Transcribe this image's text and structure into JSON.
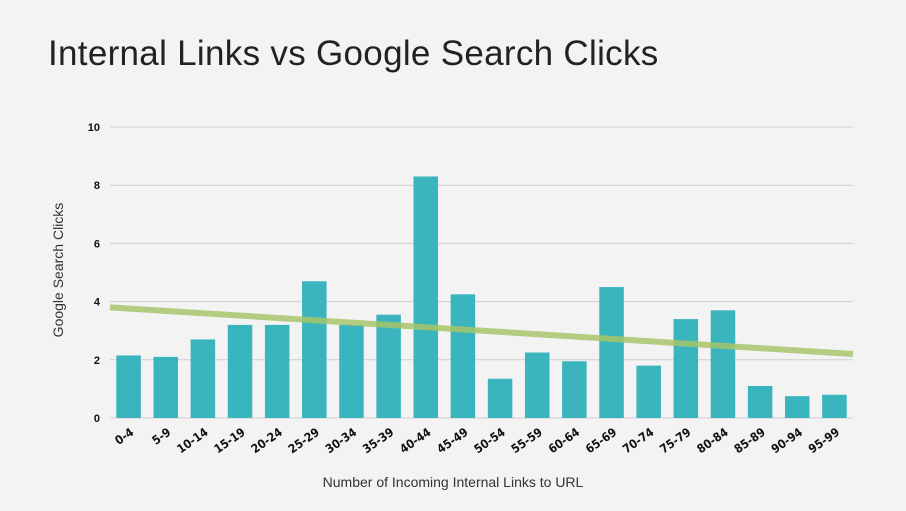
{
  "chart_data": {
    "type": "bar",
    "title": "Internal Links vs Google Search Clicks",
    "xlabel": "Number of Incoming Internal Links to URL",
    "ylabel": "Google Search Clicks",
    "ylim": [
      0,
      10
    ],
    "yticks": [
      "0",
      "2",
      "4",
      "6",
      "8",
      "10"
    ],
    "grid": true,
    "categories": [
      "0-4",
      "5-9",
      "10-14",
      "15-19",
      "20-24",
      "25-29",
      "30-34",
      "35-39",
      "40-44",
      "45-49",
      "50-54",
      "55-59",
      "60-64",
      "65-69",
      "70-74",
      "75-79",
      "80-84",
      "85-89",
      "90-94",
      "95-99"
    ],
    "values": [
      2.15,
      2.1,
      2.7,
      3.2,
      3.2,
      4.7,
      3.2,
      3.55,
      8.3,
      4.25,
      1.35,
      2.25,
      1.95,
      4.5,
      1.8,
      3.4,
      3.7,
      1.1,
      0.75,
      0.8
    ],
    "trendline": {
      "start": 3.8,
      "end": 2.2
    },
    "colors": {
      "bar": "#3ab4bd",
      "trend": "#a7c46a",
      "grid": "#cfcfcf"
    }
  }
}
